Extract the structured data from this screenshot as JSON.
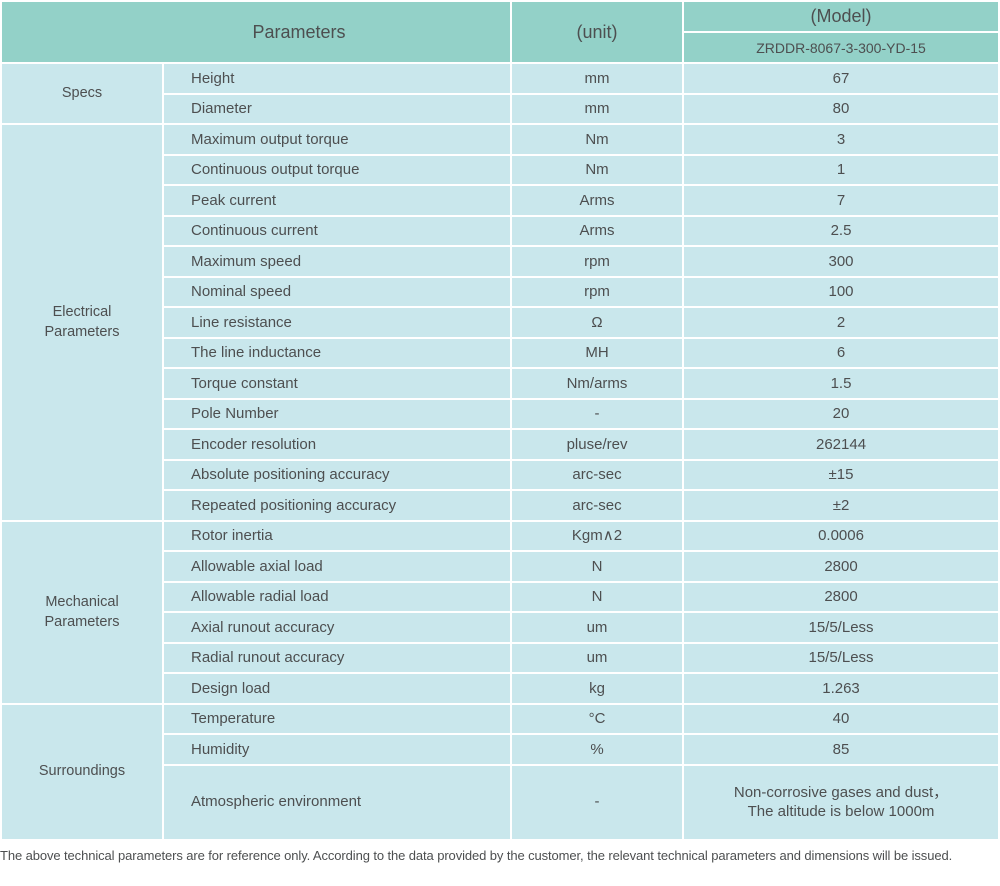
{
  "colors": {
    "header_teal": "#93d1c8",
    "cell_blue": "#c9e7ec",
    "text_gray": "#4d4f50",
    "divider_white": "#ffffff"
  },
  "table": {
    "header": {
      "parameters_label": "Parameters",
      "unit_label": "(unit)",
      "model_label": "(Model)",
      "model_value": "ZRDDR-8067-3-300-YD-15"
    },
    "sections": [
      {
        "group": "Specs",
        "rows": [
          {
            "name": "Height",
            "unit": "mm",
            "value": "67"
          },
          {
            "name": "Diameter",
            "unit": "mm",
            "value": "80"
          }
        ]
      },
      {
        "group": "Electrical\nParameters",
        "rows": [
          {
            "name": "Maximum output torque",
            "unit": "Nm",
            "value": "3"
          },
          {
            "name": "Continuous output torque",
            "unit": "Nm",
            "value": "1"
          },
          {
            "name": "Peak current",
            "unit": "Arms",
            "value": "7"
          },
          {
            "name": "Continuous current",
            "unit": "Arms",
            "value": "2.5"
          },
          {
            "name": "Maximum speed",
            "unit": "rpm",
            "value": "300"
          },
          {
            "name": "Nominal speed",
            "unit": "rpm",
            "value": "100"
          },
          {
            "name": "Line resistance",
            "unit": "Ω",
            "value": "2"
          },
          {
            "name": "The line inductance",
            "unit": "MH",
            "value": "6"
          },
          {
            "name": "Torque constant",
            "unit": "Nm/arms",
            "value": "1.5"
          },
          {
            "name": "Pole Number",
            "unit": "-",
            "value": "20"
          },
          {
            "name": "Encoder resolution",
            "unit": "pluse/rev",
            "value": "262144"
          },
          {
            "name": "Absolute positioning accuracy",
            "unit": "arc-sec",
            "value": "±15"
          },
          {
            "name": "Repeated positioning accuracy",
            "unit": "arc-sec",
            "value": "±2"
          }
        ]
      },
      {
        "group": "Mechanical\nParameters",
        "rows": [
          {
            "name": "Rotor inertia",
            "unit": "Kgm∧2",
            "value": "0.0006"
          },
          {
            "name": "Allowable axial load",
            "unit": "N",
            "value": "2800"
          },
          {
            "name": "Allowable radial load",
            "unit": "N",
            "value": "2800"
          },
          {
            "name": "Axial runout accuracy",
            "unit": "um",
            "value": "15/5/Less"
          },
          {
            "name": "Radial runout accuracy",
            "unit": "um",
            "value": "15/5/Less"
          },
          {
            "name": "Design load",
            "unit": "kg",
            "value": "1.263"
          }
        ]
      },
      {
        "group": "Surroundings",
        "rows": [
          {
            "name": "Temperature",
            "unit": "°C",
            "value": "40"
          },
          {
            "name": "Humidity",
            "unit": "%",
            "value": "85"
          },
          {
            "name": "Atmospheric environment",
            "unit": "-",
            "value": "Non-corrosive gases and dust，\nThe altitude is below 1000m"
          }
        ]
      }
    ]
  },
  "footer_note": "The above technical parameters are for reference only. According to the data provided by the customer, the relevant technical parameters and dimensions will be issued."
}
